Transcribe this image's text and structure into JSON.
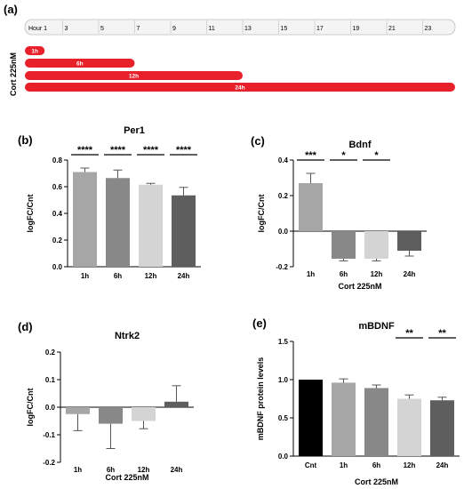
{
  "panel_a": {
    "letter": "(a)",
    "row_label": "Cort 225nM",
    "axis_ticks": [
      "Hour 1",
      "3",
      "5",
      "7",
      "9",
      "11",
      "13",
      "15",
      "17",
      "19",
      "21",
      "23"
    ],
    "bars": [
      {
        "label": "1h",
        "start": 1,
        "end": 2
      },
      {
        "label": "6h",
        "start": 1,
        "end": 7
      },
      {
        "label": "12h",
        "start": 1,
        "end": 13
      },
      {
        "label": "24h",
        "start": 1,
        "end": 25
      }
    ],
    "bar_color": "#e8202a"
  },
  "chart_data": [
    {
      "panel": "(b)",
      "type": "bar",
      "title": "Per1",
      "xlabel": "",
      "ylabel": "logFC/Cnt",
      "categories": [
        "1h",
        "6h",
        "12h",
        "24h"
      ],
      "values": [
        0.71,
        0.665,
        0.615,
        0.535
      ],
      "errors": [
        0.03,
        0.06,
        0.01,
        0.06
      ],
      "colors": [
        "#a6a6a6",
        "#888888",
        "#d4d4d4",
        "#5e5e5e"
      ],
      "ylim": [
        0,
        0.8
      ],
      "yticks": [
        "0.0",
        "0.2",
        "0.4",
        "0.6",
        "0.8"
      ],
      "significance": [
        "****",
        "****",
        "****",
        "****"
      ]
    },
    {
      "panel": "(c)",
      "type": "bar",
      "title": "Bdnf",
      "xlabel": "Cort 225nM",
      "ylabel": "logFC/Cnt",
      "categories": [
        "1h",
        "6h",
        "12h",
        "24h"
      ],
      "values": [
        0.27,
        -0.155,
        -0.155,
        -0.11
      ],
      "errors": [
        0.055,
        0.012,
        0.012,
        0.03
      ],
      "colors": [
        "#a6a6a6",
        "#888888",
        "#d4d4d4",
        "#5e5e5e"
      ],
      "ylim": [
        -0.2,
        0.4
      ],
      "yticks": [
        "-0.2",
        "0.0",
        "0.2",
        "0.4"
      ],
      "significance": [
        "***",
        "*",
        "*",
        ""
      ]
    },
    {
      "panel": "(d)",
      "type": "bar",
      "title": "Ntrk2",
      "xlabel": "Cort 225nM",
      "ylabel": "logFC/Cnt",
      "categories": [
        "1h",
        "6h",
        "12h",
        "24h"
      ],
      "values": [
        -0.025,
        -0.06,
        -0.05,
        0.02
      ],
      "errors": [
        0.06,
        0.09,
        0.028,
        0.058
      ],
      "colors": [
        "#a6a6a6",
        "#888888",
        "#d4d4d4",
        "#5e5e5e"
      ],
      "ylim": [
        -0.2,
        0.2
      ],
      "yticks": [
        "-0.2",
        "-0.1",
        "0.0",
        "0.1",
        "0.2"
      ],
      "significance": [
        "",
        "",
        "",
        ""
      ]
    },
    {
      "panel": "(e)",
      "type": "bar",
      "title": "mBDNF",
      "xlabel": "Cort 225nM",
      "ylabel": "mBDNF protein levels",
      "categories": [
        "Cnt",
        "1h",
        "6h",
        "12h",
        "24h"
      ],
      "values": [
        1.0,
        0.96,
        0.89,
        0.75,
        0.73
      ],
      "errors": [
        0.0,
        0.05,
        0.04,
        0.05,
        0.04
      ],
      "colors": [
        "#000000",
        "#a6a6a6",
        "#888888",
        "#d4d4d4",
        "#5e5e5e"
      ],
      "ylim": [
        0,
        1.5
      ],
      "yticks": [
        "0.0",
        "0.5",
        "1.0",
        "1.5"
      ],
      "significance": [
        "",
        "",
        "",
        "**",
        "**"
      ]
    }
  ]
}
